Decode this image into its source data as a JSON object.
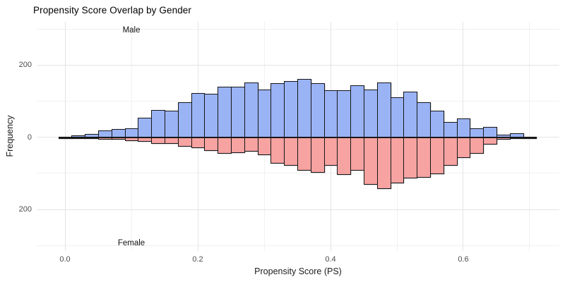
{
  "title": "Propensity Score Overlap by Gender",
  "chart_data": {
    "type": "bar",
    "subtype": "mirrored-histogram",
    "title": "Propensity Score Overlap by Gender",
    "xlabel": "Propensity Score (PS)",
    "ylabel": "Frequency",
    "grid": true,
    "legend_position": "none",
    "xlim": [
      -0.0426,
      0.7447
    ],
    "ylim": [
      -315,
      320
    ],
    "bin_width": 0.02,
    "x_major_ticks": [
      0.0,
      0.2,
      0.4,
      0.6
    ],
    "x_tick_labels": [
      "0.0",
      "0.2",
      "0.4",
      "0.6"
    ],
    "x_minor_ticks": [
      0.1,
      0.3,
      0.5,
      0.7
    ],
    "y_major_ticks": [
      200,
      0,
      -200
    ],
    "y_tick_labels": [
      "200",
      "0",
      "200"
    ],
    "y_minor_ticks": [
      300,
      100,
      -100,
      -300
    ],
    "categories": [
      0.0,
      0.02,
      0.04,
      0.06,
      0.08,
      0.1,
      0.12,
      0.14,
      0.16,
      0.18,
      0.2,
      0.22,
      0.24,
      0.26,
      0.28,
      0.3,
      0.32,
      0.34,
      0.36,
      0.38,
      0.4,
      0.42,
      0.44,
      0.46,
      0.48,
      0.5,
      0.52,
      0.54,
      0.56,
      0.58,
      0.6,
      0.62,
      0.64,
      0.66,
      0.68,
      0.7
    ],
    "series": [
      {
        "name": "Male",
        "direction": "up",
        "color": "#9ab3f5",
        "values": [
          2,
          5,
          10,
          20,
          23,
          25,
          55,
          75,
          73,
          97,
          122,
          120,
          140,
          140,
          152,
          132,
          150,
          156,
          161,
          150,
          130,
          130,
          144,
          132,
          151,
          110,
          126,
          97,
          74,
          42,
          52,
          25,
          28,
          8,
          12,
          1
        ]
      },
      {
        "name": "Female",
        "direction": "down",
        "color": "#f7a3a1",
        "values": [
          1,
          2,
          4,
          6,
          7,
          10,
          12,
          18,
          18,
          25,
          29,
          38,
          45,
          43,
          39,
          49,
          72,
          78,
          92,
          98,
          78,
          104,
          92,
          131,
          143,
          127,
          114,
          111,
          102,
          78,
          57,
          45,
          20,
          6,
          3,
          1
        ]
      }
    ],
    "annotations": [
      {
        "text": "Male",
        "x": 0.1,
        "y": 297
      },
      {
        "text": "Female",
        "x": 0.1,
        "y": -293
      }
    ]
  }
}
